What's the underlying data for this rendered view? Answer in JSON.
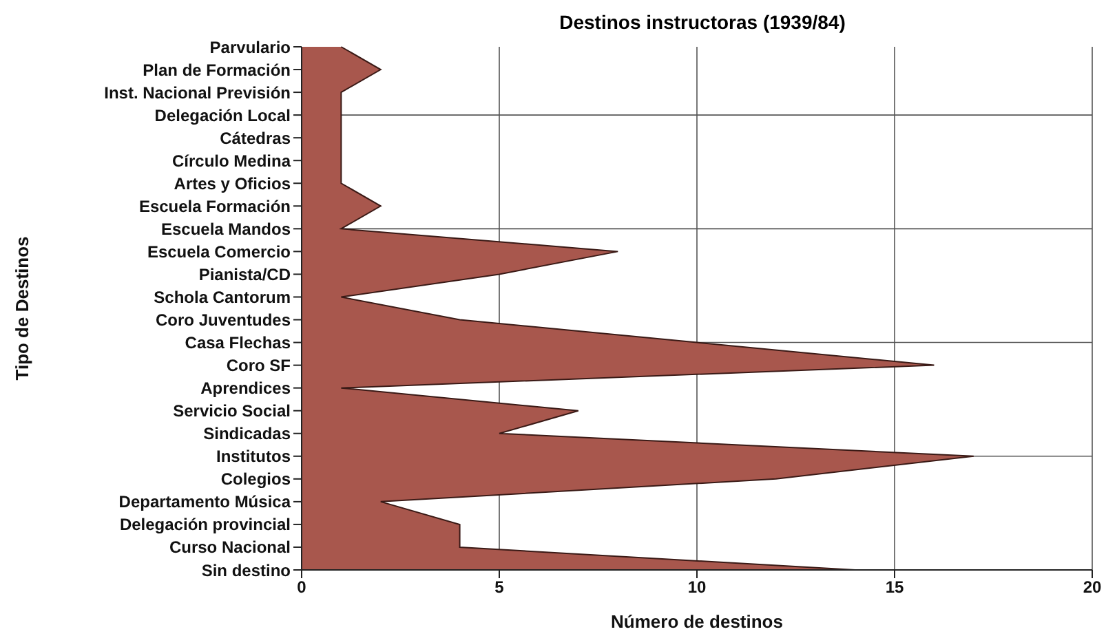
{
  "chart_data": {
    "type": "area",
    "orientation": "horizontal",
    "title": "Destinos instructoras (1939/84)",
    "xlabel": "Número de destinos",
    "ylabel": "Tipo de Destinos",
    "categories": [
      "Parvulario",
      "Plan de Formación",
      "Inst. Nacional Previsión",
      "Delegación Local",
      "Cátedras",
      "Círculo Medina",
      "Artes y Oficios",
      "Escuela Formación",
      "Escuela Mandos",
      "Escuela Comercio",
      "Pianista/CD",
      "Schola Cantorum",
      "Coro Juventudes",
      "Casa Flechas",
      "Coro SF",
      "Aprendices",
      "Servicio Social",
      "Sindicadas",
      "Institutos",
      "Colegios",
      "Departamento Música",
      "Delegación provincial",
      "Curso Nacional",
      "Sin destino"
    ],
    "series": [
      {
        "color": "#a8574d",
        "values": [
          1,
          2,
          1,
          1,
          1,
          1,
          1,
          2,
          1,
          8,
          5,
          1,
          4,
          10,
          16,
          1,
          7,
          5,
          17,
          12,
          2,
          4,
          4,
          14
        ]
      }
    ],
    "xlim": [
      0,
      20
    ],
    "xticks": [
      0,
      5,
      10,
      15,
      20
    ],
    "grid": true,
    "legend": false
  }
}
